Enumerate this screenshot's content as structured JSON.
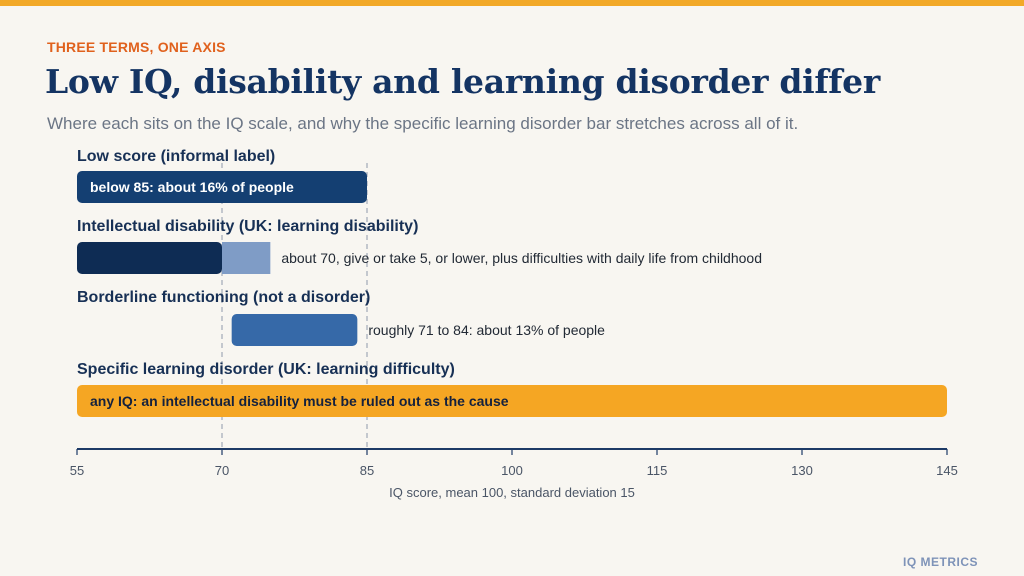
{
  "kicker": "THREE TERMS, ONE AXIS",
  "title": "Low IQ, disability and learning disorder differ",
  "subtitle": "Where each sits on the IQ scale, and why the specific learning disorder bar stretches across all of it.",
  "brand": "IQ METRICS",
  "colors": {
    "accent_bar": "#f2a928",
    "kicker": "#e0611d",
    "title": "#143463",
    "low_score": "#143f72",
    "intellectual_disability": "#0e2c54",
    "intellectual_disability_fuzzy": "#7f9cc6",
    "borderline": "#3669a8",
    "learning_disorder": "#f5a623",
    "axis": "#1d3a66",
    "reference_line": "#a7aebb"
  },
  "chart_data": {
    "type": "bar",
    "orientation": "horizontal",
    "xlabel": "IQ score, mean 100, standard deviation 15",
    "xlim": [
      55,
      145
    ],
    "xticks": [
      55,
      70,
      85,
      100,
      115,
      130,
      145
    ],
    "reference_lines": [
      70,
      85
    ],
    "rows": [
      {
        "label": "Low score (informal label)",
        "start": 55,
        "end": 85,
        "annotation": "below 85: about 16% of people",
        "annotation_inside": true
      },
      {
        "label": "Intellectual disability (UK: learning disability)",
        "start": 55,
        "end": 70,
        "fuzzy_start": 70,
        "fuzzy_end": 75,
        "annotation": "about 70, give or take 5, or lower, plus difficulties with daily life from childhood",
        "annotation_inside": false
      },
      {
        "label": "Borderline functioning (not a disorder)",
        "start": 71,
        "end": 84,
        "annotation": "roughly 71 to 84: about 13% of people",
        "annotation_inside": false
      },
      {
        "label": "Specific learning disorder (UK: learning difficulty)",
        "start": 55,
        "end": 145,
        "annotation": "any IQ: an intellectual disability must be ruled out as the cause",
        "annotation_inside": true
      }
    ]
  }
}
